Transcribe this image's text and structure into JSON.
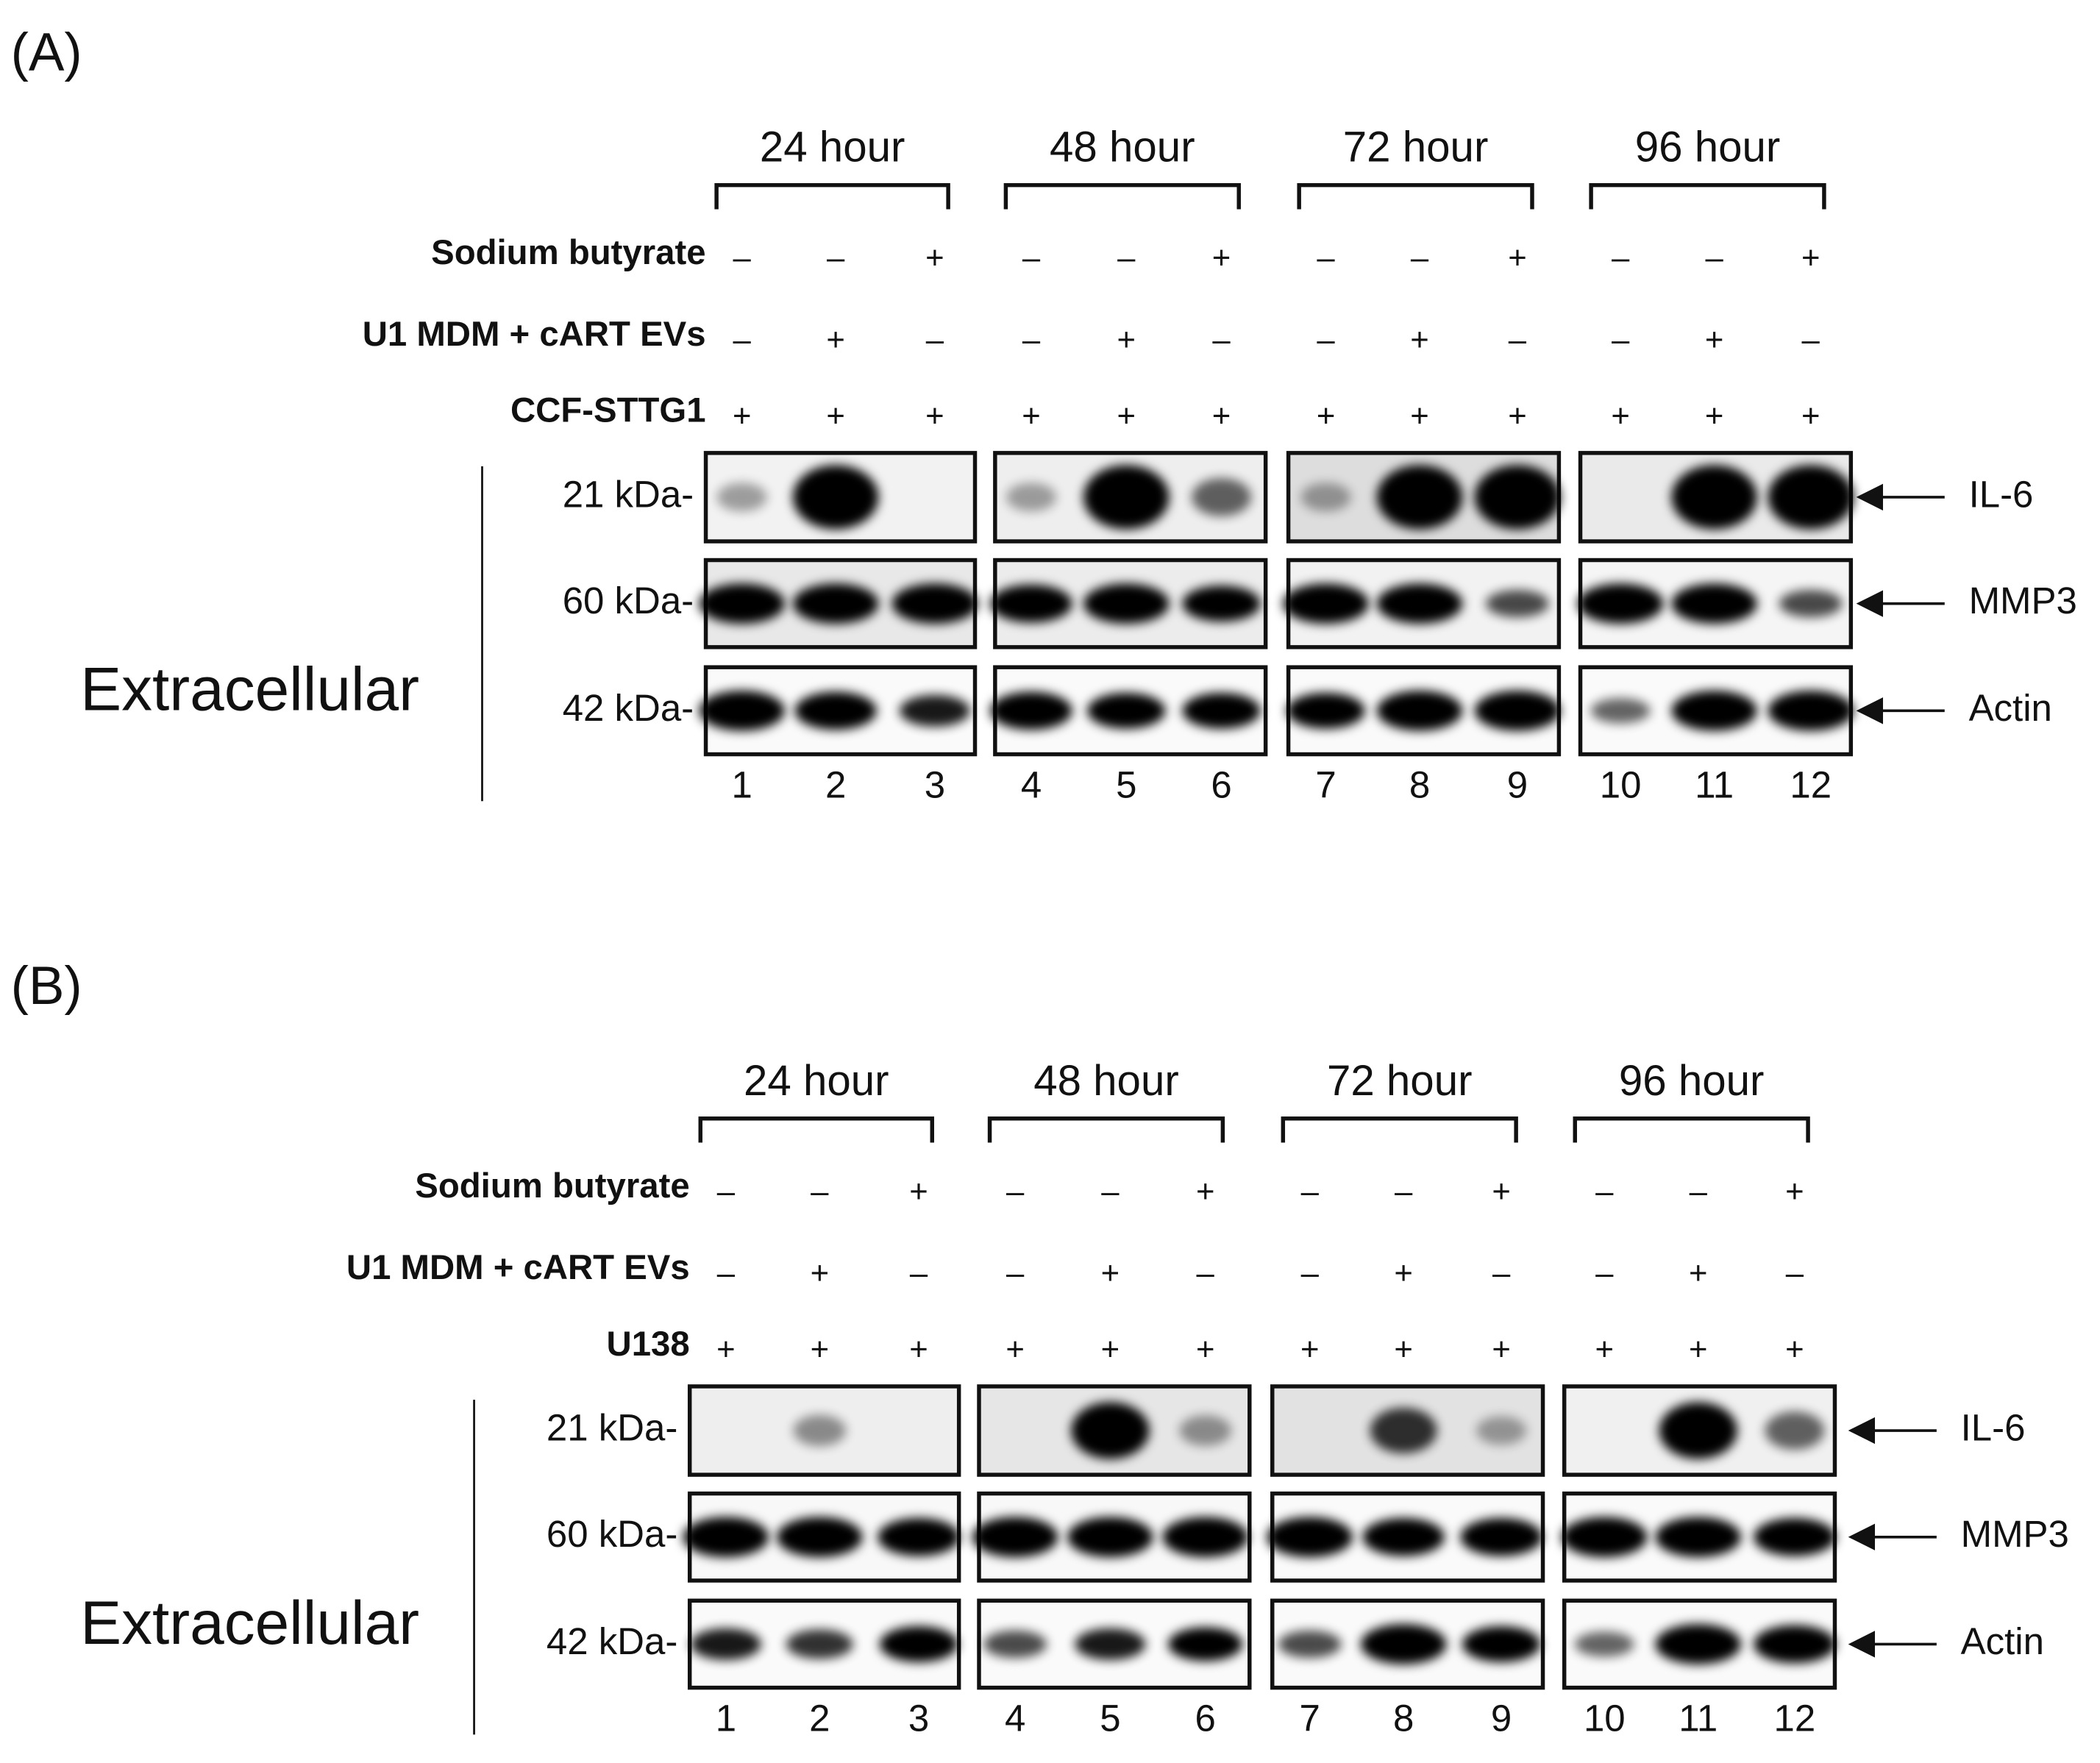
{
  "panels": [
    {
      "label": "(A)",
      "time_points": [
        "24 hour",
        "48 hour",
        "72 hour",
        "96 hour"
      ],
      "rows": [
        {
          "name": "Sodium butyrate",
          "signs": [
            "–",
            "–",
            "+",
            "–",
            "–",
            "+",
            "–",
            "–",
            "+",
            "–",
            "–",
            "+"
          ]
        },
        {
          "name": "U1 MDM + cART EVs",
          "signs": [
            "–",
            "+",
            "–",
            "–",
            "+",
            "–",
            "–",
            "+",
            "–",
            "–",
            "+",
            "–"
          ]
        },
        {
          "name": "CCF-STTG1",
          "signs": [
            "+",
            "+",
            "+",
            "+",
            "+",
            "+",
            "+",
            "+",
            "+",
            "+",
            "+",
            "+"
          ]
        }
      ],
      "markers": [
        "21 kDa-",
        "60 kDa-",
        "42 kDa-"
      ],
      "proteins": [
        "IL-6",
        "MMP3",
        "Actin"
      ],
      "compartment": "Extracellular",
      "lanes": [
        "1",
        "2",
        "3",
        "4",
        "5",
        "6",
        "7",
        "8",
        "9",
        "10",
        "11",
        "12"
      ]
    },
    {
      "label": "(B)",
      "time_points": [
        "24 hour",
        "48 hour",
        "72 hour",
        "96 hour"
      ],
      "rows": [
        {
          "name": "Sodium butyrate",
          "signs": [
            "–",
            "–",
            "+",
            "–",
            "–",
            "+",
            "–",
            "–",
            "+",
            "–",
            "–",
            "+"
          ]
        },
        {
          "name": "U1 MDM + cART EVs",
          "signs": [
            "–",
            "+",
            "–",
            "–",
            "+",
            "–",
            "–",
            "+",
            "–",
            "–",
            "+",
            "–"
          ]
        },
        {
          "name": "U138",
          "signs": [
            "+",
            "+",
            "+",
            "+",
            "+",
            "+",
            "+",
            "+",
            "+",
            "+",
            "+",
            "+"
          ]
        }
      ],
      "markers": [
        "21 kDa-",
        "60 kDa-",
        "42 kDa-"
      ],
      "proteins": [
        "IL-6",
        "MMP3",
        "Actin"
      ],
      "compartment": "Extracellular",
      "lanes": [
        "1",
        "2",
        "3",
        "4",
        "5",
        "6",
        "7",
        "8",
        "9",
        "10",
        "11",
        "12"
      ]
    }
  ]
}
